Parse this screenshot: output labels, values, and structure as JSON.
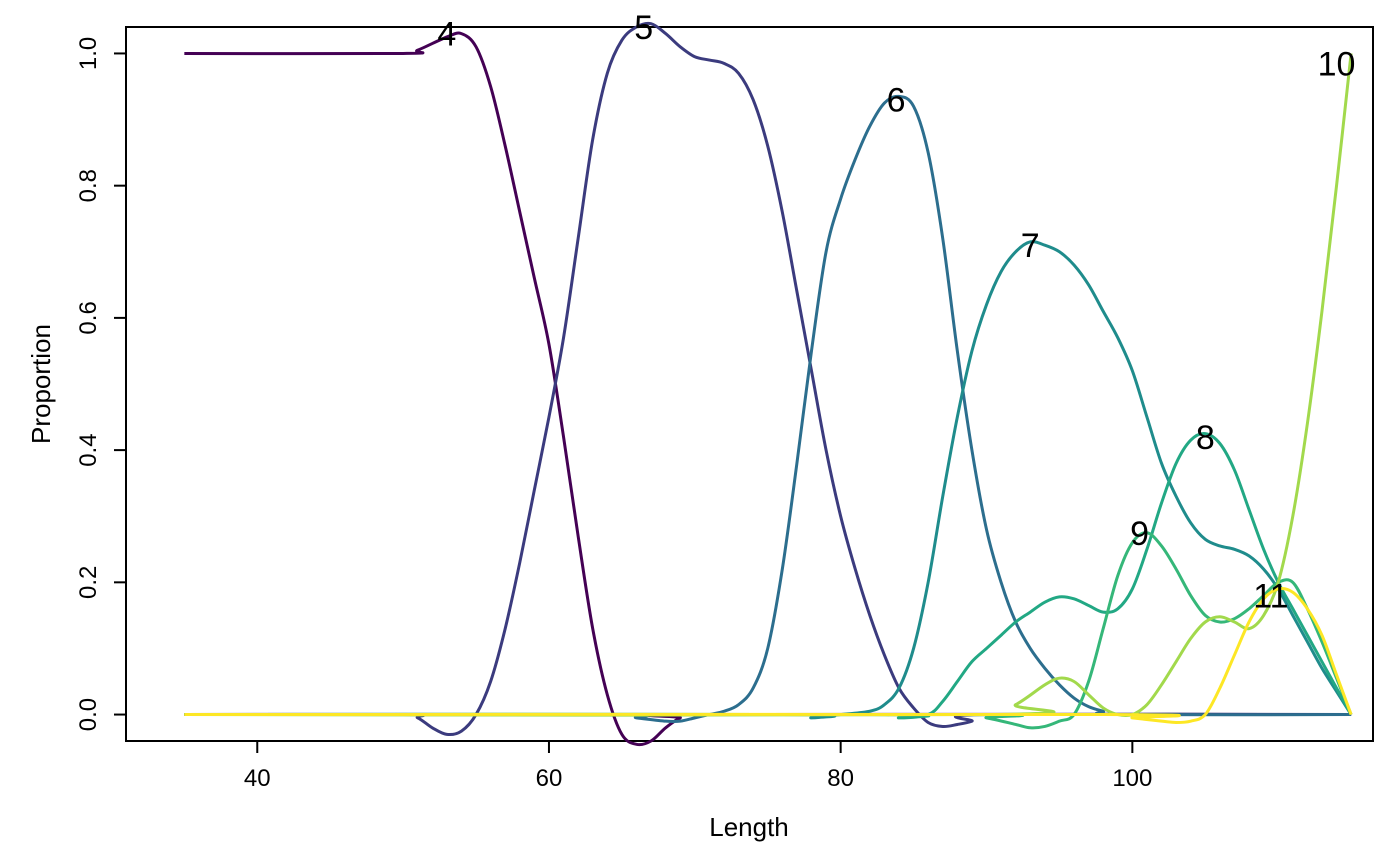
{
  "chart_data": {
    "type": "line",
    "title": "",
    "xlabel": "Length",
    "ylabel": "Proportion",
    "xlim": [
      31,
      116.5
    ],
    "ylim": [
      -0.04,
      1.04
    ],
    "xticks": [
      40,
      60,
      80,
      100
    ],
    "yticks": [
      0.0,
      0.2,
      0.4,
      0.6,
      0.8,
      1.0
    ],
    "xtick_labels": [
      "40",
      "60",
      "80",
      "100"
    ],
    "ytick_labels": [
      "0.0",
      "0.2",
      "0.4",
      "0.6",
      "0.8",
      "1.0"
    ],
    "grid": false,
    "legend": "none",
    "series": [
      {
        "name": "4",
        "color": "#440154",
        "label_at": [
          53,
          1.03
        ],
        "points": [
          [
            35,
            1.0
          ],
          [
            50,
            1.0
          ],
          [
            51,
            1.005
          ],
          [
            53,
            1.025
          ],
          [
            54,
            1.03
          ],
          [
            55,
            1.01
          ],
          [
            56,
            0.95
          ],
          [
            57,
            0.86
          ],
          [
            58,
            0.76
          ],
          [
            59,
            0.66
          ],
          [
            60,
            0.56
          ],
          [
            61,
            0.42
          ],
          [
            62,
            0.27
          ],
          [
            63,
            0.13
          ],
          [
            64,
            0.03
          ],
          [
            65,
            -0.03
          ],
          [
            66,
            -0.045
          ],
          [
            67,
            -0.04
          ],
          [
            68,
            -0.02
          ],
          [
            69,
            -0.005
          ],
          [
            70,
            0.0
          ],
          [
            115,
            0.0
          ]
        ]
      },
      {
        "name": "5",
        "color": "#3b3b7e",
        "label_at": [
          66.5,
          1.04
        ],
        "points": [
          [
            35,
            0.0
          ],
          [
            50,
            0.0
          ],
          [
            51,
            -0.005
          ],
          [
            52,
            -0.02
          ],
          [
            53,
            -0.03
          ],
          [
            54,
            -0.025
          ],
          [
            55,
            0.0
          ],
          [
            56,
            0.05
          ],
          [
            57,
            0.13
          ],
          [
            58,
            0.23
          ],
          [
            59,
            0.34
          ],
          [
            60,
            0.45
          ],
          [
            61,
            0.57
          ],
          [
            62,
            0.72
          ],
          [
            63,
            0.87
          ],
          [
            64,
            0.97
          ],
          [
            65,
            1.02
          ],
          [
            66,
            1.04
          ],
          [
            67,
            1.045
          ],
          [
            68,
            1.03
          ],
          [
            69,
            1.01
          ],
          [
            70,
            0.995
          ],
          [
            71,
            0.99
          ],
          [
            72,
            0.985
          ],
          [
            73,
            0.97
          ],
          [
            74,
            0.93
          ],
          [
            75,
            0.86
          ],
          [
            76,
            0.76
          ],
          [
            77,
            0.64
          ],
          [
            78,
            0.52
          ],
          [
            79,
            0.4
          ],
          [
            80,
            0.3
          ],
          [
            81,
            0.22
          ],
          [
            82,
            0.15
          ],
          [
            83,
            0.09
          ],
          [
            84,
            0.04
          ],
          [
            85,
            0.01
          ],
          [
            86,
            -0.012
          ],
          [
            87,
            -0.018
          ],
          [
            88,
            -0.015
          ],
          [
            89,
            -0.01
          ],
          [
            90,
            0.0
          ],
          [
            115,
            0.0
          ]
        ]
      },
      {
        "name": "6",
        "color": "#2c6e8e",
        "label_at": [
          83.8,
          0.93
        ],
        "points": [
          [
            35,
            0.0
          ],
          [
            64,
            0.0
          ],
          [
            66,
            -0.005
          ],
          [
            68,
            -0.01
          ],
          [
            69,
            -0.01
          ],
          [
            70,
            -0.005
          ],
          [
            71,
            0.0
          ],
          [
            72,
            0.005
          ],
          [
            73,
            0.015
          ],
          [
            74,
            0.04
          ],
          [
            75,
            0.1
          ],
          [
            76,
            0.22
          ],
          [
            77,
            0.38
          ],
          [
            78,
            0.55
          ],
          [
            79,
            0.7
          ],
          [
            80,
            0.78
          ],
          [
            81,
            0.84
          ],
          [
            82,
            0.89
          ],
          [
            83,
            0.925
          ],
          [
            84,
            0.935
          ],
          [
            85,
            0.92
          ],
          [
            86,
            0.85
          ],
          [
            87,
            0.72
          ],
          [
            88,
            0.55
          ],
          [
            89,
            0.4
          ],
          [
            90,
            0.28
          ],
          [
            91,
            0.2
          ],
          [
            92,
            0.14
          ],
          [
            93,
            0.1
          ],
          [
            94,
            0.07
          ],
          [
            95,
            0.045
          ],
          [
            96,
            0.025
          ],
          [
            97,
            0.012
          ],
          [
            98,
            0.005
          ],
          [
            99,
            0.0
          ],
          [
            115,
            0.0
          ]
        ]
      },
      {
        "name": "7",
        "color": "#1f8c8c",
        "label_at": [
          93,
          0.71
        ],
        "points": [
          [
            35,
            0.0
          ],
          [
            76,
            0.0
          ],
          [
            78,
            -0.005
          ],
          [
            80,
            0.0
          ],
          [
            82,
            0.005
          ],
          [
            83,
            0.015
          ],
          [
            84,
            0.04
          ],
          [
            85,
            0.1
          ],
          [
            86,
            0.2
          ],
          [
            87,
            0.33
          ],
          [
            88,
            0.45
          ],
          [
            89,
            0.55
          ],
          [
            90,
            0.62
          ],
          [
            91,
            0.67
          ],
          [
            92,
            0.7
          ],
          [
            93,
            0.715
          ],
          [
            94,
            0.71
          ],
          [
            95,
            0.7
          ],
          [
            96,
            0.68
          ],
          [
            97,
            0.65
          ],
          [
            98,
            0.61
          ],
          [
            99,
            0.57
          ],
          [
            100,
            0.52
          ],
          [
            101,
            0.45
          ],
          [
            102,
            0.38
          ],
          [
            103,
            0.33
          ],
          [
            104,
            0.29
          ],
          [
            105,
            0.265
          ],
          [
            106,
            0.255
          ],
          [
            107,
            0.25
          ],
          [
            108,
            0.24
          ],
          [
            109,
            0.22
          ],
          [
            110,
            0.19
          ],
          [
            111,
            0.15
          ],
          [
            112,
            0.11
          ],
          [
            113,
            0.07
          ],
          [
            114,
            0.035
          ],
          [
            115,
            0.0
          ]
        ]
      },
      {
        "name": "8",
        "color": "#22a884",
        "label_at": [
          105,
          0.42
        ],
        "points": [
          [
            35,
            0.0
          ],
          [
            82,
            0.0
          ],
          [
            84,
            -0.005
          ],
          [
            86,
            0.0
          ],
          [
            87,
            0.02
          ],
          [
            88,
            0.05
          ],
          [
            89,
            0.08
          ],
          [
            90,
            0.1
          ],
          [
            91,
            0.12
          ],
          [
            92,
            0.14
          ],
          [
            93,
            0.155
          ],
          [
            94,
            0.17
          ],
          [
            95,
            0.178
          ],
          [
            96,
            0.175
          ],
          [
            97,
            0.165
          ],
          [
            98,
            0.155
          ],
          [
            99,
            0.16
          ],
          [
            100,
            0.19
          ],
          [
            101,
            0.25
          ],
          [
            102,
            0.32
          ],
          [
            103,
            0.38
          ],
          [
            104,
            0.415
          ],
          [
            105,
            0.425
          ],
          [
            106,
            0.41
          ],
          [
            107,
            0.37
          ],
          [
            108,
            0.31
          ],
          [
            109,
            0.25
          ],
          [
            110,
            0.2
          ],
          [
            111,
            0.16
          ],
          [
            112,
            0.12
          ],
          [
            113,
            0.08
          ],
          [
            114,
            0.04
          ],
          [
            115,
            0.0
          ]
        ]
      },
      {
        "name": "9",
        "color": "#35b779",
        "label_at": [
          100.5,
          0.275
        ],
        "points": [
          [
            35,
            0.0
          ],
          [
            88,
            0.0
          ],
          [
            90,
            -0.005
          ],
          [
            92,
            -0.015
          ],
          [
            93,
            -0.02
          ],
          [
            94,
            -0.018
          ],
          [
            95,
            -0.01
          ],
          [
            96,
            0.0
          ],
          [
            97,
            0.05
          ],
          [
            98,
            0.13
          ],
          [
            99,
            0.21
          ],
          [
            100,
            0.26
          ],
          [
            101,
            0.275
          ],
          [
            102,
            0.255
          ],
          [
            103,
            0.22
          ],
          [
            104,
            0.18
          ],
          [
            105,
            0.15
          ],
          [
            106,
            0.14
          ],
          [
            107,
            0.145
          ],
          [
            108,
            0.16
          ],
          [
            109,
            0.18
          ],
          [
            110,
            0.2
          ],
          [
            111,
            0.2
          ],
          [
            112,
            0.16
          ],
          [
            113,
            0.11
          ],
          [
            114,
            0.055
          ],
          [
            115,
            0.0
          ]
        ]
      },
      {
        "name": "10",
        "color": "#a2d94c",
        "label_at": [
          114,
          0.985
        ],
        "points": [
          [
            35,
            0.0
          ],
          [
            90,
            0.0
          ],
          [
            92,
            0.015
          ],
          [
            94,
            0.045
          ],
          [
            95,
            0.055
          ],
          [
            96,
            0.05
          ],
          [
            97,
            0.03
          ],
          [
            98,
            0.01
          ],
          [
            99,
            0.0
          ],
          [
            100,
            0.0
          ],
          [
            101,
            0.015
          ],
          [
            102,
            0.045
          ],
          [
            103,
            0.08
          ],
          [
            104,
            0.115
          ],
          [
            105,
            0.14
          ],
          [
            106,
            0.148
          ],
          [
            107,
            0.14
          ],
          [
            108,
            0.13
          ],
          [
            109,
            0.15
          ],
          [
            110,
            0.2
          ],
          [
            111,
            0.3
          ],
          [
            112,
            0.44
          ],
          [
            113,
            0.61
          ],
          [
            114,
            0.8
          ],
          [
            115,
            1.0
          ]
        ]
      },
      {
        "name": "11",
        "color": "#fde725",
        "label_at": [
          109.5,
          0.18
        ],
        "points": [
          [
            35,
            0.0
          ],
          [
            98,
            0.0
          ],
          [
            100,
            -0.005
          ],
          [
            102,
            -0.01
          ],
          [
            103,
            -0.012
          ],
          [
            104,
            -0.01
          ],
          [
            105,
            0.0
          ],
          [
            106,
            0.04
          ],
          [
            107,
            0.09
          ],
          [
            108,
            0.14
          ],
          [
            109,
            0.175
          ],
          [
            110,
            0.19
          ],
          [
            111,
            0.185
          ],
          [
            112,
            0.16
          ],
          [
            113,
            0.12
          ],
          [
            114,
            0.06
          ],
          [
            115,
            0.0
          ]
        ]
      }
    ]
  }
}
